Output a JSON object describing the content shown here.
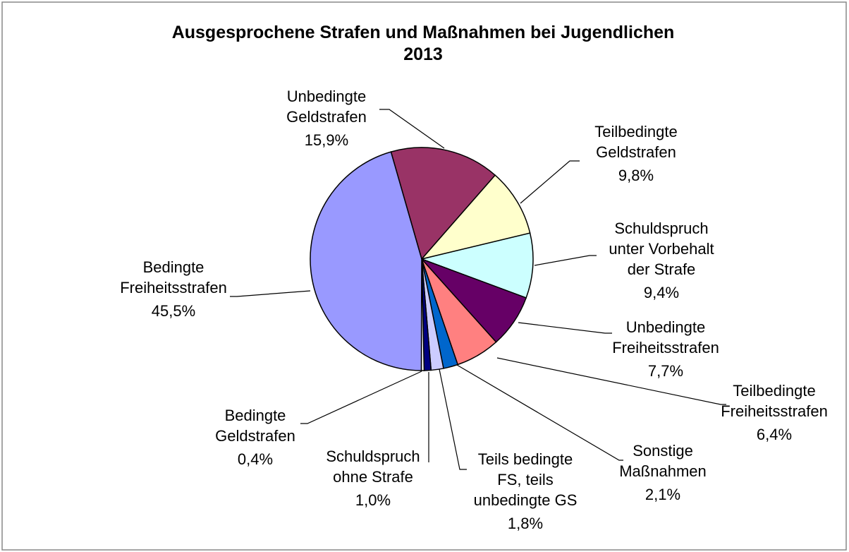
{
  "chart_data": {
    "type": "pie",
    "title": "Ausgesprochene Strafen und Maßnahmen bei Jugendlichen\n2013",
    "categories": [
      "Unbedingte\nGeldstrafen",
      "Teilbedingte\nGeldstrafen",
      "Schuldspruch\nunter Vorbehalt\nder Strafe",
      "Unbedingte\nFreiheitsstrafen",
      "Teilbedingte\nFreiheitsstrafen",
      "Sonstige\nMaßnahmen",
      "Teils bedingte\nFS, teils\nunbedingte GS",
      "Schuldspruch\nohne Strafe",
      "Bedingte\nGeldstrafen",
      "Bedingte\nFreiheitsstrafen"
    ],
    "values": [
      15.9,
      9.8,
      9.4,
      7.7,
      6.4,
      2.1,
      1.8,
      1.0,
      0.4,
      45.5
    ],
    "value_labels": [
      "15,9%",
      "9,8%",
      "9,4%",
      "7,7%",
      "6,4%",
      "2,1%",
      "1,8%",
      "1,0%",
      "0,4%",
      "45,5%"
    ],
    "colors": [
      "#993366",
      "#ffffcc",
      "#ccffff",
      "#660066",
      "#ff8080",
      "#0066cc",
      "#ccccff",
      "#000080",
      "#ffffff",
      "#9999ff"
    ]
  }
}
